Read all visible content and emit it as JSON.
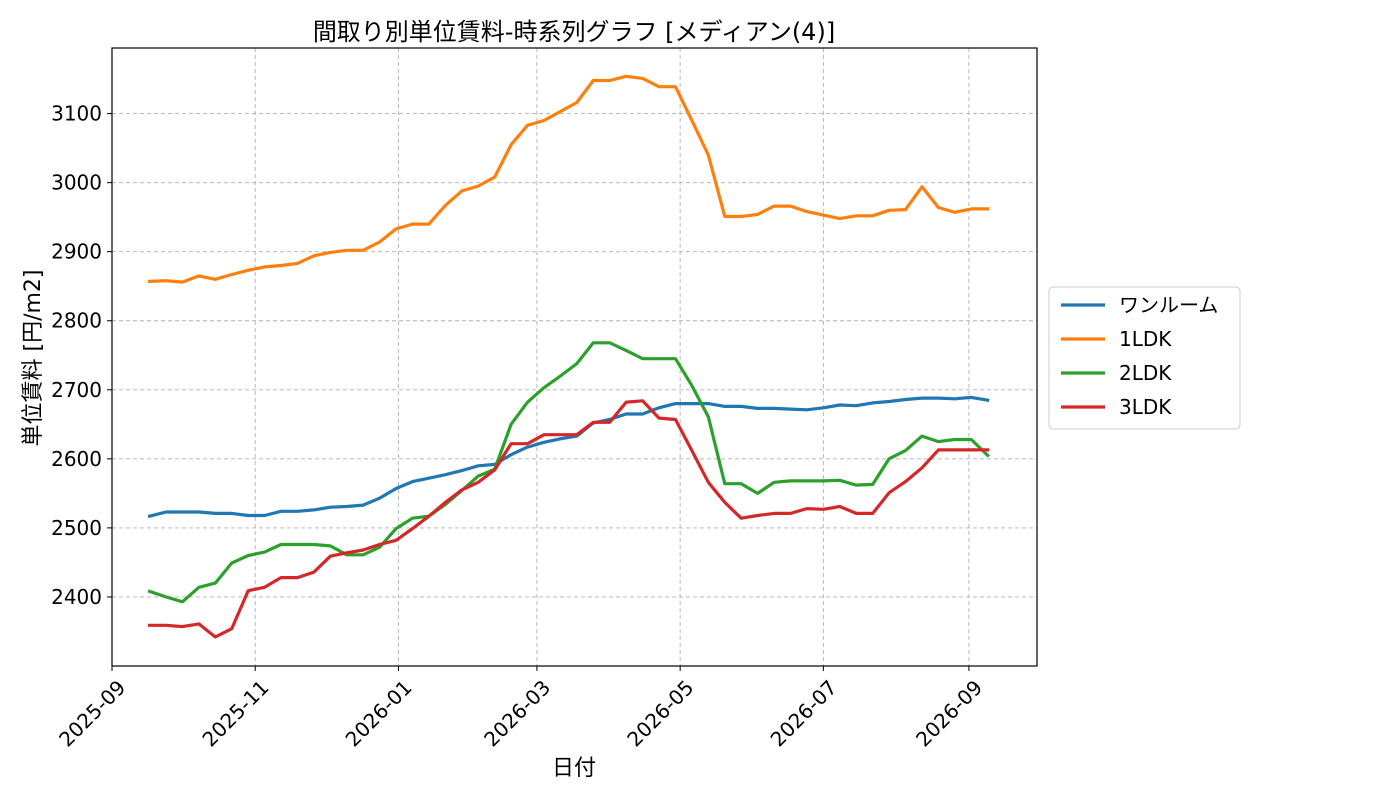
{
  "chart_data": {
    "type": "line",
    "title": "間取り別単位賃料-時系列グラフ [メディアン(4)]",
    "xlabel": "日付",
    "ylabel": "単位賃料 [円/m2]",
    "xlim": [
      "2025-09-01",
      "2026-09-30"
    ],
    "ylim": [
      2300,
      3195
    ],
    "xticks": [
      "2025-09",
      "2025-11",
      "2026-01",
      "2026-03",
      "2026-05",
      "2026-07",
      "2026-09"
    ],
    "yticks": [
      2400,
      2500,
      2600,
      2700,
      2800,
      2900,
      3000,
      3100
    ],
    "grid": true,
    "legend_position": "right",
    "x": [
      "2025-09-17",
      "2025-09-24",
      "2025-10-01",
      "2025-10-08",
      "2025-10-15",
      "2025-10-22",
      "2025-10-29",
      "2025-11-05",
      "2025-11-12",
      "2025-11-19",
      "2025-11-26",
      "2025-12-03",
      "2025-12-10",
      "2025-12-17",
      "2025-12-24",
      "2025-12-31",
      "2026-01-07",
      "2026-01-14",
      "2026-01-21",
      "2026-01-28",
      "2026-02-04",
      "2026-02-11",
      "2026-02-18",
      "2026-02-25",
      "2026-03-04",
      "2026-03-11",
      "2026-03-18",
      "2026-03-25",
      "2026-04-01",
      "2026-04-08",
      "2026-04-15",
      "2026-04-22",
      "2026-04-29",
      "2026-05-06",
      "2026-05-13",
      "2026-05-20",
      "2026-05-27",
      "2026-06-03",
      "2026-06-10",
      "2026-06-17",
      "2026-06-24",
      "2026-07-01",
      "2026-07-08",
      "2026-07-15",
      "2026-07-22",
      "2026-07-29",
      "2026-08-05",
      "2026-08-12",
      "2026-08-19",
      "2026-08-26",
      "2026-09-02",
      "2026-09-09"
    ],
    "series": [
      {
        "name": "ワンルーム",
        "color": "#1f77b4",
        "values": [
          2517,
          2523,
          2523,
          2523,
          2521,
          2521,
          2518,
          2518,
          2524,
          2524,
          2526,
          2530,
          2531,
          2533,
          2543,
          2557,
          2567,
          2572,
          2577,
          2583,
          2590,
          2592,
          2606,
          2617,
          2624,
          2629,
          2633,
          2652,
          2657,
          2665,
          2665,
          2674,
          2680,
          2680,
          2680,
          2676,
          2676,
          2673,
          2673,
          2672,
          2671,
          2674,
          2678,
          2677,
          2681,
          2683,
          2686,
          2688,
          2688,
          2687,
          2689,
          2685
        ]
      },
      {
        "name": "1LDK",
        "color": "#ff7f0e",
        "values": [
          2857,
          2858,
          2856,
          2865,
          2860,
          2867,
          2873,
          2878,
          2880,
          2883,
          2894,
          2899,
          2902,
          2902,
          2914,
          2933,
          2940,
          2940,
          2967,
          2988,
          2995,
          3008,
          3055,
          3083,
          3090,
          3103,
          3116,
          3148,
          3148,
          3154,
          3151,
          3139,
          3139,
          3090,
          3040,
          2951,
          2951,
          2954,
          2966,
          2966,
          2958,
          2953,
          2948,
          2952,
          2952,
          2960,
          2961,
          2994,
          2964,
          2957,
          2962,
          2962
        ]
      },
      {
        "name": "2LDK",
        "color": "#2ca02c",
        "values": [
          2408,
          2400,
          2393,
          2414,
          2420,
          2449,
          2460,
          2465,
          2476,
          2476,
          2476,
          2474,
          2461,
          2461,
          2472,
          2499,
          2514,
          2517,
          2534,
          2554,
          2575,
          2585,
          2650,
          2682,
          2703,
          2720,
          2738,
          2768,
          2768,
          2757,
          2745,
          2745,
          2745,
          2706,
          2661,
          2564,
          2564,
          2550,
          2566,
          2568,
          2568,
          2568,
          2569,
          2562,
          2563,
          2600,
          2612,
          2633,
          2625,
          2628,
          2628,
          2605
        ]
      },
      {
        "name": "3LDK",
        "color": "#d62728",
        "values": [
          2359,
          2359,
          2357,
          2361,
          2342,
          2354,
          2409,
          2414,
          2428,
          2428,
          2436,
          2459,
          2464,
          2468,
          2476,
          2482,
          2499,
          2517,
          2537,
          2555,
          2566,
          2584,
          2622,
          2622,
          2635,
          2635,
          2635,
          2653,
          2653,
          2682,
          2684,
          2659,
          2657,
          2612,
          2566,
          2537,
          2514,
          2518,
          2521,
          2521,
          2528,
          2527,
          2531,
          2521,
          2521,
          2551,
          2567,
          2587,
          2613,
          2613,
          2613,
          2613
        ]
      }
    ]
  }
}
